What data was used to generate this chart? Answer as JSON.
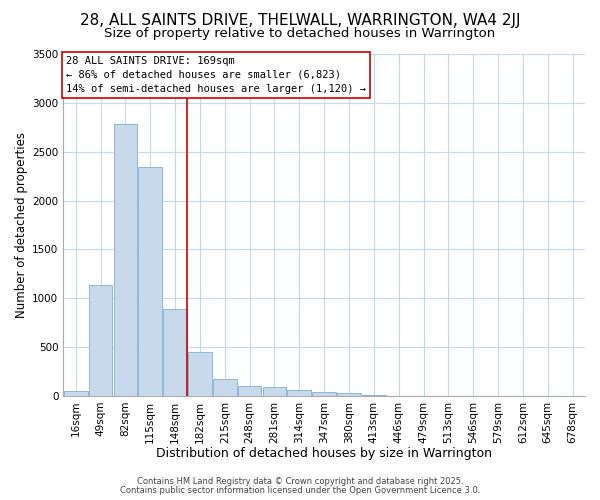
{
  "title1": "28, ALL SAINTS DRIVE, THELWALL, WARRINGTON, WA4 2JJ",
  "title2": "Size of property relative to detached houses in Warrington",
  "xlabel": "Distribution of detached houses by size in Warrington",
  "ylabel": "Number of detached properties",
  "categories": [
    "16sqm",
    "49sqm",
    "82sqm",
    "115sqm",
    "148sqm",
    "182sqm",
    "215sqm",
    "248sqm",
    "281sqm",
    "314sqm",
    "347sqm",
    "380sqm",
    "413sqm",
    "446sqm",
    "479sqm",
    "513sqm",
    "546sqm",
    "579sqm",
    "612sqm",
    "645sqm",
    "678sqm"
  ],
  "values": [
    50,
    1130,
    2780,
    2340,
    890,
    450,
    175,
    100,
    90,
    60,
    40,
    25,
    5,
    3,
    1,
    1,
    0,
    0,
    0,
    0,
    0
  ],
  "bar_color": "#c9d9ec",
  "bar_edge_color": "#7bafd4",
  "background_color": "#ffffff",
  "plot_bg_color": "#ffffff",
  "grid_color": "#c8d8ec",
  "vline_color": "#cc0000",
  "vline_index": 5,
  "annotation_line1": "28 ALL SAINTS DRIVE: 169sqm",
  "annotation_line2": "← 86% of detached houses are smaller (6,823)",
  "annotation_line3": "14% of semi-detached houses are larger (1,120) →",
  "annotation_box_facecolor": "#ffffff",
  "annotation_border_color": "#cc0000",
  "ylim": [
    0,
    3500
  ],
  "yticks": [
    0,
    500,
    1000,
    1500,
    2000,
    2500,
    3000,
    3500
  ],
  "footnote1": "Contains HM Land Registry data © Crown copyright and database right 2025.",
  "footnote2": "Contains public sector information licensed under the Open Government Licence 3.0.",
  "title_fontsize": 11,
  "subtitle_fontsize": 9.5,
  "xlabel_fontsize": 9,
  "ylabel_fontsize": 8.5,
  "tick_fontsize": 7.5,
  "annotation_fontsize": 7.5,
  "footnote_fontsize": 6
}
